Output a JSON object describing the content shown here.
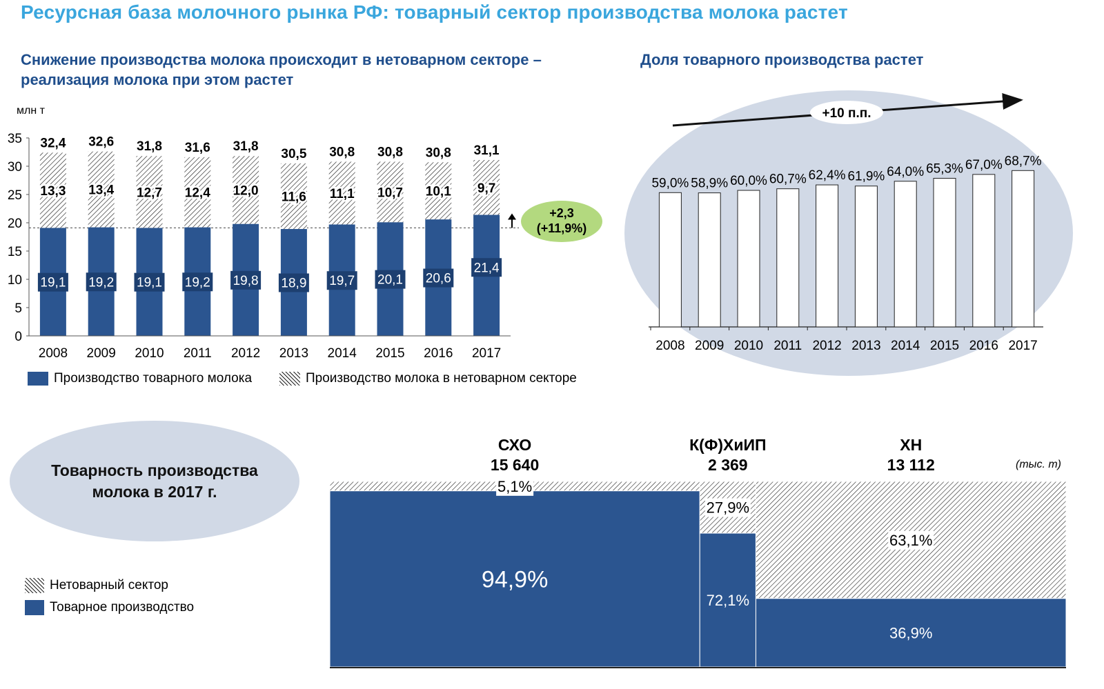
{
  "page": {
    "title": "Ресурсная база молочного рынка РФ: товарный сектор производства молока растет",
    "left_subtitle": "Снижение производства молока происходит в нетоварном секторе – реализация молока при этом растет",
    "right_subtitle": "Доля товарного производства растет",
    "unit": "млн т",
    "bottom_title": "Товарность производства молока в 2017 г."
  },
  "colors": {
    "commercial": "#2b5590",
    "title": "#3aa6dd",
    "subtitle": "#1f4e8c",
    "oval": "#d1d9e6",
    "badge": "#b3d97f"
  },
  "chart_data": [
    {
      "type": "bar",
      "stacked": true,
      "categories": [
        "2008",
        "2009",
        "2010",
        "2011",
        "2012",
        "2013",
        "2014",
        "2015",
        "2016",
        "2017"
      ],
      "series": [
        {
          "name": "Производство товарного молока",
          "values": [
            19.1,
            19.2,
            19.1,
            19.2,
            19.8,
            18.9,
            19.7,
            20.1,
            20.6,
            21.4
          ],
          "labels": [
            "19,1",
            "19,2",
            "19,1",
            "19,2",
            "19,8",
            "18,9",
            "19,7",
            "20,1",
            "20,6",
            "21,4"
          ]
        },
        {
          "name": "Производство молока в нетоварном секторе",
          "values": [
            13.3,
            13.4,
            12.7,
            12.4,
            12.0,
            11.6,
            11.1,
            10.7,
            10.1,
            9.7
          ],
          "labels": [
            "13,3",
            "13,4",
            "12,7",
            "12,4",
            "12,0",
            "11,6",
            "11,1",
            "10,7",
            "10,1",
            "9,7"
          ]
        }
      ],
      "totals": [
        "32,4",
        "32,6",
        "31,8",
        "31,6",
        "31,8",
        "30,5",
        "30,8",
        "30,8",
        "30,8",
        "31,1"
      ],
      "yticks": [
        "0",
        "5",
        "10",
        "15",
        "20",
        "25",
        "30",
        "35"
      ],
      "ylim": [
        0,
        35
      ],
      "annotation": {
        "line1": "+2,3",
        "line2": "(+11,9%)"
      },
      "legend": [
        "Производство товарного молока",
        "Производство молока в нетоварном секторе"
      ]
    },
    {
      "type": "bar",
      "categories": [
        "2008",
        "2009",
        "2010",
        "2011",
        "2012",
        "2013",
        "2014",
        "2015",
        "2016",
        "2017"
      ],
      "values": [
        59.0,
        58.9,
        60.0,
        60.7,
        62.4,
        61.9,
        64.0,
        65.3,
        67.0,
        68.7
      ],
      "labels": [
        "59,0%",
        "58,9%",
        "60,0%",
        "60,7%",
        "62,4%",
        "61,9%",
        "64,0%",
        "65,3%",
        "67,0%",
        "68,7%"
      ],
      "trend_label": "+10 п.п."
    },
    {
      "type": "bar",
      "variant": "marimekko",
      "unit": "(тыс. т)",
      "groups": [
        {
          "name": "СХО",
          "total": "15 640",
          "total_value": 15640,
          "commercial": 94.9,
          "noncommercial": 5.1,
          "commercial_label": "94,9%",
          "noncommercial_label": "5,1%"
        },
        {
          "name": "К(Ф)ХиИП",
          "total": "2 369",
          "total_value": 2369,
          "commercial": 72.1,
          "noncommercial": 27.9,
          "commercial_label": "72,1%",
          "noncommercial_label": "27,9%"
        },
        {
          "name": "ХН",
          "total": "13 112",
          "total_value": 13112,
          "commercial": 36.9,
          "noncommercial": 63.1,
          "commercial_label": "36,9%",
          "noncommercial_label": "63,1%"
        }
      ],
      "legend": [
        "Нетоварный сектор",
        "Товарное производство"
      ]
    }
  ]
}
